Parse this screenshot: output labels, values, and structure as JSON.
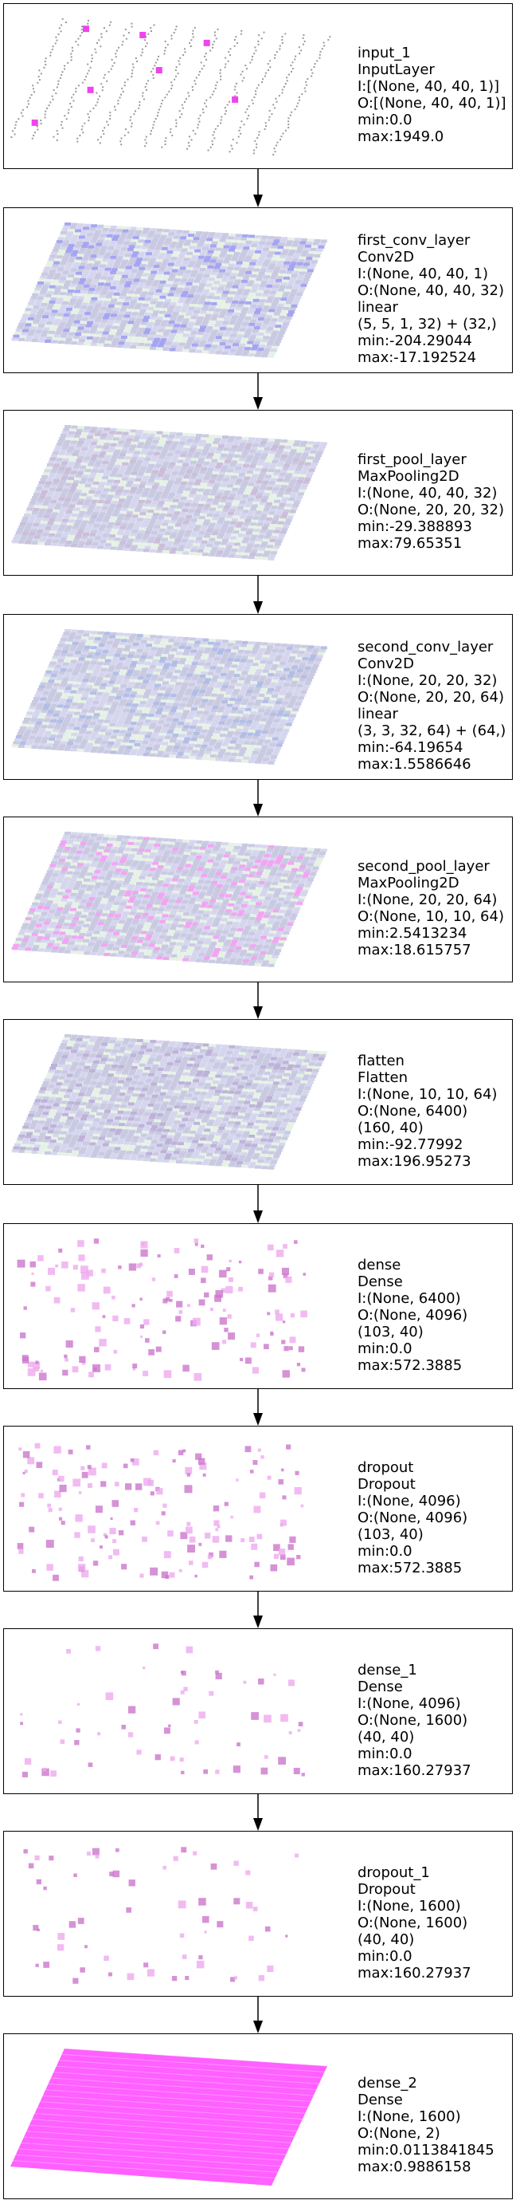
{
  "layers": [
    {
      "name": "input_1",
      "type": "InputLayer",
      "input": "I:[(None, 40, 40, 1)]",
      "output": "O:[(None, 40, 40, 1)]",
      "extra": [],
      "min": "min:0.0",
      "max": "max:1949.0",
      "viz": "dots",
      "accent": "#ee44ee"
    },
    {
      "name": "first_conv_layer",
      "type": "Conv2D",
      "input": "I:(None, 40, 40, 1)",
      "output": "O:(None, 40, 40, 32)",
      "extra": [
        "linear",
        "(5, 5, 1, 32) + (32,)"
      ],
      "min": "min:-204.29044",
      "max": "max:-17.192524",
      "viz": "grid",
      "accent": "#8888ee"
    },
    {
      "name": "first_pool_layer",
      "type": "MaxPooling2D",
      "input": "I:(None, 40, 40, 32)",
      "output": "O:(None, 20, 20, 32)",
      "extra": [],
      "min": "min:-29.388893",
      "max": "max:79.65351",
      "viz": "grid",
      "accent": "#bbaacc"
    },
    {
      "name": "second_conv_layer",
      "type": "Conv2D",
      "input": "I:(None, 20, 20, 32)",
      "output": "O:(None, 20, 20, 64)",
      "extra": [
        "linear",
        "(3, 3, 32, 64) + (64,)"
      ],
      "min": "min:-64.19654",
      "max": "max:1.5586646",
      "viz": "grid",
      "accent": "#99aadd"
    },
    {
      "name": "second_pool_layer",
      "type": "MaxPooling2D",
      "input": "I:(None, 20, 20, 64)",
      "output": "O:(None, 10, 10, 64)",
      "extra": [],
      "min": "min:2.5413234",
      "max": "max:18.615757",
      "viz": "grid",
      "accent": "#ee88ee"
    },
    {
      "name": "flatten",
      "type": "Flatten",
      "input": "I:(None, 10, 10, 64)",
      "output": "O:(None, 6400)",
      "extra": [
        "(160, 40)"
      ],
      "min": "min:-92.77992",
      "max": "max:196.95273",
      "viz": "grid",
      "accent": "#aa99cc"
    },
    {
      "name": "dense",
      "type": "Dense",
      "input": "I:(None, 6400)",
      "output": "O:(None, 4096)",
      "extra": [
        "(103, 40)"
      ],
      "min": "min:0.0",
      "max": "max:572.3885",
      "viz": "scatter",
      "accent": "#cc88cc"
    },
    {
      "name": "dropout",
      "type": "Dropout",
      "input": "I:(None, 4096)",
      "output": "O:(None, 4096)",
      "extra": [
        "(103, 40)"
      ],
      "min": "min:0.0",
      "max": "max:572.3885",
      "viz": "scatter",
      "accent": "#cc88cc"
    },
    {
      "name": "dense_1",
      "type": "Dense",
      "input": "I:(None, 4096)",
      "output": "O:(None, 1600)",
      "extra": [
        "(40, 40)"
      ],
      "min": "min:0.0",
      "max": "max:160.27937",
      "viz": "sparse",
      "accent": "#cc88cc"
    },
    {
      "name": "dropout_1",
      "type": "Dropout",
      "input": "I:(None, 1600)",
      "output": "O:(None, 1600)",
      "extra": [
        "(40, 40)"
      ],
      "min": "min:0.0",
      "max": "max:160.27937",
      "viz": "sparse",
      "accent": "#cc88cc"
    },
    {
      "name": "dense_2",
      "type": "Dense",
      "input": "I:(None, 1600)",
      "output": "O:(None, 2)",
      "extra": [],
      "min": "min:0.0113841845",
      "max": "max:0.9886158",
      "viz": "solid",
      "accent": "#ff44ff"
    }
  ]
}
